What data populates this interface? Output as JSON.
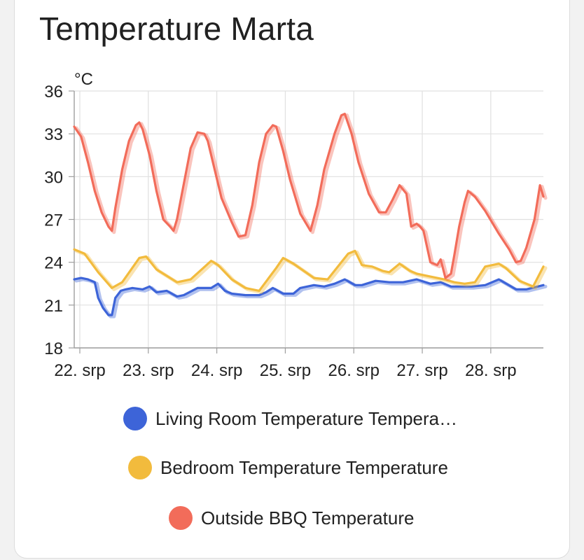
{
  "card": {
    "title": "Temperature Marta"
  },
  "chart_data": {
    "type": "line",
    "unit": "°C",
    "ylim": [
      18,
      36
    ],
    "yticks": [
      18,
      21,
      24,
      27,
      30,
      33,
      36
    ],
    "xlim": [
      0,
      6.85
    ],
    "xticks": [
      {
        "x": 0,
        "label": "22. srp"
      },
      {
        "x": 1,
        "label": "23. srp"
      },
      {
        "x": 2,
        "label": "24. srp"
      },
      {
        "x": 3,
        "label": "25. srp"
      },
      {
        "x": 4,
        "label": "26. srp"
      },
      {
        "x": 5,
        "label": "27. srp"
      },
      {
        "x": 6,
        "label": "28. srp"
      }
    ],
    "grid": true,
    "legend_position": "bottom",
    "series": [
      {
        "name": "Living Room Temperature Tempera…",
        "color": "#3d64d8",
        "x": [
          0,
          0.1,
          0.2,
          0.3,
          0.35,
          0.42,
          0.5,
          0.55,
          0.6,
          0.68,
          0.75,
          0.85,
          1.0,
          1.1,
          1.2,
          1.35,
          1.5,
          1.6,
          1.8,
          2.0,
          2.1,
          2.2,
          2.3,
          2.5,
          2.7,
          2.8,
          2.9,
          3.05,
          3.2,
          3.3,
          3.5,
          3.65,
          3.8,
          3.95,
          4.1,
          4.2,
          4.4,
          4.6,
          4.8,
          5.0,
          5.2,
          5.35,
          5.5,
          5.65,
          5.8,
          6.0,
          6.2,
          6.45,
          6.6,
          6.85
        ],
        "values": [
          22.8,
          22.9,
          22.8,
          22.6,
          21.5,
          20.8,
          20.3,
          20.3,
          21.5,
          22.0,
          22.1,
          22.2,
          22.1,
          22.3,
          21.9,
          22.0,
          21.6,
          21.7,
          22.2,
          22.2,
          22.5,
          22.0,
          21.8,
          21.7,
          21.7,
          21.9,
          22.2,
          21.8,
          21.8,
          22.2,
          22.4,
          22.3,
          22.5,
          22.8,
          22.4,
          22.4,
          22.7,
          22.6,
          22.6,
          22.8,
          22.5,
          22.6,
          22.3,
          22.3,
          22.3,
          22.4,
          22.8,
          22.1,
          22.1,
          22.4
        ]
      },
      {
        "name": "Bedroom Temperature Temperature",
        "color": "#f2bb3d",
        "x": [
          0,
          0.15,
          0.35,
          0.55,
          0.7,
          0.95,
          1.05,
          1.2,
          1.5,
          1.7,
          2.0,
          2.1,
          2.3,
          2.5,
          2.7,
          2.95,
          3.05,
          3.2,
          3.5,
          3.7,
          4.0,
          4.1,
          4.2,
          4.35,
          4.5,
          4.6,
          4.75,
          4.9,
          5.0,
          5.2,
          5.4,
          5.55,
          5.7,
          5.85,
          6.0,
          6.2,
          6.3,
          6.5,
          6.7,
          6.85
        ],
        "values": [
          24.9,
          24.6,
          23.3,
          22.2,
          22.6,
          24.3,
          24.4,
          23.5,
          22.6,
          22.8,
          24.1,
          23.8,
          22.8,
          22.2,
          22.0,
          23.6,
          24.3,
          23.9,
          22.9,
          22.8,
          24.6,
          24.8,
          23.8,
          23.7,
          23.4,
          23.3,
          23.9,
          23.4,
          23.2,
          23.0,
          22.8,
          22.6,
          22.5,
          22.6,
          23.7,
          23.9,
          23.6,
          22.7,
          22.3,
          23.7
        ]
      },
      {
        "name": "Outside BBQ Temperature",
        "color": "#f26c5a",
        "x": [
          0,
          0.1,
          0.2,
          0.3,
          0.4,
          0.5,
          0.55,
          0.6,
          0.7,
          0.8,
          0.9,
          0.95,
          1.0,
          1.1,
          1.2,
          1.3,
          1.4,
          1.45,
          1.5,
          1.6,
          1.7,
          1.8,
          1.9,
          1.95,
          2.05,
          2.15,
          2.3,
          2.4,
          2.5,
          2.6,
          2.7,
          2.8,
          2.9,
          2.95,
          3.05,
          3.15,
          3.3,
          3.45,
          3.55,
          3.65,
          3.8,
          3.9,
          3.95,
          4.05,
          4.15,
          4.3,
          4.45,
          4.55,
          4.65,
          4.75,
          4.85,
          4.92,
          5.0,
          5.05,
          5.1,
          5.2,
          5.3,
          5.35,
          5.42,
          5.5,
          5.55,
          5.62,
          5.7,
          5.75,
          5.85,
          6.0,
          6.1,
          6.2,
          6.35,
          6.45,
          6.52,
          6.6,
          6.72,
          6.8,
          6.85
        ],
        "values": [
          33.5,
          32.8,
          31.0,
          29.0,
          27.5,
          26.5,
          26.2,
          27.8,
          30.5,
          32.5,
          33.6,
          33.8,
          33.3,
          31.5,
          29.0,
          27.0,
          26.5,
          26.2,
          27.0,
          29.5,
          32.0,
          33.1,
          33.0,
          32.5,
          30.5,
          28.5,
          26.8,
          25.8,
          25.9,
          28.0,
          31.0,
          33.0,
          33.6,
          33.5,
          31.8,
          29.8,
          27.4,
          26.2,
          28.0,
          30.5,
          33.0,
          34.3,
          34.4,
          33.0,
          31.0,
          28.8,
          27.5,
          27.5,
          28.4,
          29.4,
          28.8,
          26.5,
          26.7,
          26.5,
          26.2,
          24.0,
          23.8,
          24.2,
          22.9,
          23.2,
          24.5,
          26.5,
          28.2,
          29.0,
          28.6,
          27.6,
          26.8,
          26.0,
          24.9,
          24.0,
          24.1,
          25.0,
          27.0,
          29.4,
          28.6
        ]
      }
    ]
  }
}
